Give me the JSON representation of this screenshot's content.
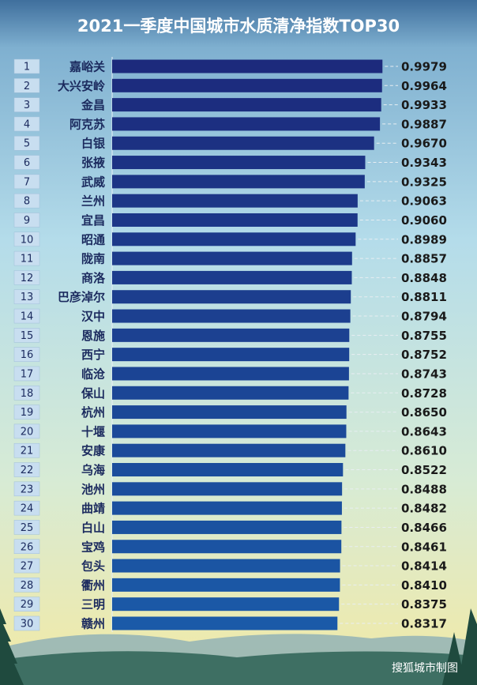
{
  "chart_data": {
    "type": "barh",
    "title": "2021一季度中国城市水质清净指数TOP30",
    "source": "搜狐城市制图",
    "ranks": [
      1,
      2,
      3,
      4,
      5,
      6,
      7,
      8,
      9,
      10,
      11,
      12,
      13,
      14,
      15,
      16,
      17,
      18,
      19,
      20,
      21,
      22,
      23,
      24,
      25,
      26,
      27,
      28,
      29,
      30
    ],
    "categories": [
      "嘉峪关",
      "大兴安岭",
      "金昌",
      "阿克苏",
      "白银",
      "张掖",
      "武威",
      "兰州",
      "宜昌",
      "昭通",
      "陇南",
      "商洛",
      "巴彦淖尔",
      "汉中",
      "恩施",
      "西宁",
      "临沧",
      "保山",
      "杭州",
      "十堰",
      "安康",
      "乌海",
      "池州",
      "曲靖",
      "白山",
      "宝鸡",
      "包头",
      "衢州",
      "三明",
      "赣州"
    ],
    "values": [
      0.9979,
      0.9964,
      0.9933,
      0.9887,
      0.967,
      0.9343,
      0.9325,
      0.9063,
      0.906,
      0.8989,
      0.8857,
      0.8848,
      0.8811,
      0.8794,
      0.8755,
      0.8752,
      0.8743,
      0.8728,
      0.865,
      0.8643,
      0.861,
      0.8522,
      0.8488,
      0.8482,
      0.8466,
      0.8461,
      0.8414,
      0.841,
      0.8375,
      0.8317
    ],
    "value_labels": [
      "0.9979",
      "0.9964",
      "0.9933",
      "0.9887",
      "0.9670",
      "0.9343",
      "0.9325",
      "0.9063",
      "0.9060",
      "0.8989",
      "0.8857",
      "0.8848",
      "0.8811",
      "0.8794",
      "0.8755",
      "0.8752",
      "0.8743",
      "0.8728",
      "0.8650",
      "0.8643",
      "0.8610",
      "0.8522",
      "0.8488",
      "0.8482",
      "0.8466",
      "0.8461",
      "0.8414",
      "0.8410",
      "0.8375",
      "0.8317"
    ],
    "xlim": [
      0,
      1
    ],
    "bar_colors": [
      "#1c2a7c",
      "#1b5aa8"
    ]
  }
}
